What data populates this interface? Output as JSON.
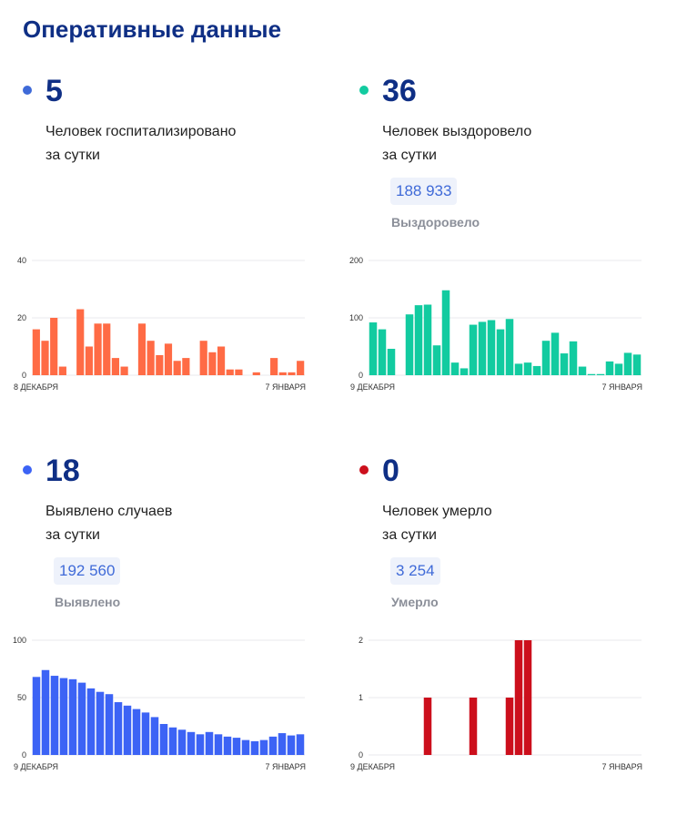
{
  "page_title": "Оперативные данные",
  "cards": [
    {
      "value": "5",
      "desc_line1": "Человек госпитализировано",
      "desc_line2": "за сутки",
      "total": "",
      "total_label": "",
      "color": "#ff6b45",
      "dot_color": "#3f6ad8"
    },
    {
      "value": "36",
      "desc_line1": "Человек выздоровело",
      "desc_line2": "за сутки",
      "total": "188 933",
      "total_label": "Выздоровело",
      "color": "#12cba0",
      "dot_color": "#12cba0"
    },
    {
      "value": "18",
      "desc_line1": "Выявлено случаев",
      "desc_line2": "за сутки",
      "total": "192 560",
      "total_label": "Выявлено",
      "color": "#3c63f5",
      "dot_color": "#3c63f5"
    },
    {
      "value": "0",
      "desc_line1": "Человек умерло",
      "desc_line2": "за сутки",
      "total": "3 254",
      "total_label": "Умерло",
      "color": "#cc0f1c",
      "dot_color": "#cc0f1c"
    }
  ],
  "chart_data": [
    {
      "type": "bar",
      "title": "Человек госпитализировано за сутки",
      "x_start_label": "8 ДЕКАБРЯ",
      "x_end_label": "7 ЯНВАРЯ",
      "yticks": [
        0,
        20,
        40
      ],
      "ylim": [
        0,
        40
      ],
      "values": [
        16,
        12,
        20,
        3,
        null,
        23,
        10,
        18,
        18,
        6,
        3,
        null,
        18,
        12,
        7,
        11,
        5,
        6,
        null,
        12,
        8,
        10,
        2,
        2,
        null,
        1,
        null,
        6,
        1,
        1,
        5
      ]
    },
    {
      "type": "bar",
      "title": "Человек выздоровело за сутки",
      "x_start_label": "9 ДЕКАБРЯ",
      "x_end_label": "7 ЯНВАРЯ",
      "yticks": [
        0,
        100,
        200
      ],
      "ylim": [
        0,
        200
      ],
      "values": [
        92,
        80,
        46,
        null,
        106,
        122,
        123,
        52,
        148,
        22,
        12,
        88,
        93,
        96,
        80,
        98,
        20,
        22,
        16,
        60,
        74,
        38,
        59,
        15,
        2,
        2,
        24,
        20,
        39,
        36
      ]
    },
    {
      "type": "bar",
      "title": "Выявлено случаев за сутки",
      "x_start_label": "9 ДЕКАБРЯ",
      "x_end_label": "7 ЯНВАРЯ",
      "yticks": [
        0,
        50,
        100
      ],
      "ylim": [
        0,
        100
      ],
      "values": [
        68,
        74,
        69,
        67,
        66,
        63,
        58,
        55,
        53,
        46,
        43,
        40,
        37,
        33,
        27,
        24,
        22,
        20,
        18,
        20,
        18,
        16,
        15,
        13,
        12,
        13,
        16,
        19,
        17,
        18
      ]
    },
    {
      "type": "bar",
      "title": "Человек умерло за сутки",
      "x_start_label": "9 ДЕКАБРЯ",
      "x_end_label": "7 ЯНВАРЯ",
      "yticks": [
        0,
        1,
        2
      ],
      "ylim": [
        0,
        2
      ],
      "values": [
        0,
        0,
        0,
        0,
        0,
        0,
        1,
        0,
        0,
        0,
        0,
        1,
        0,
        0,
        0,
        1,
        2,
        2,
        0,
        0,
        0,
        0,
        0,
        0,
        0,
        0,
        0,
        0,
        0,
        0
      ]
    }
  ]
}
